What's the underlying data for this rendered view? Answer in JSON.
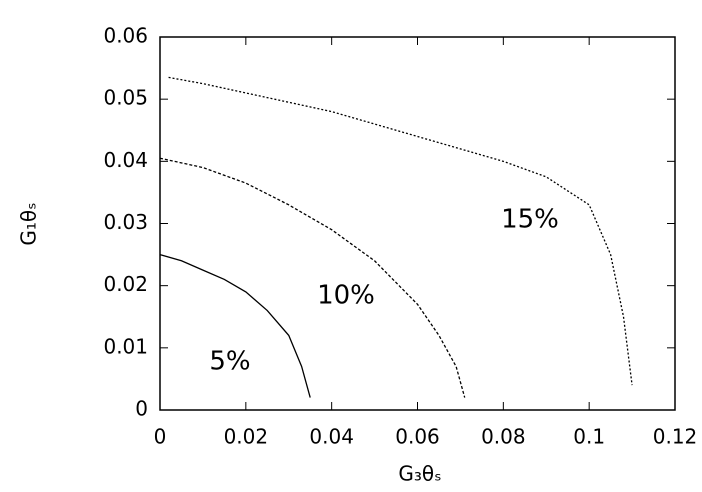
{
  "chart_data": {
    "type": "line",
    "x_label": "G₃θₛ",
    "y_label": "G₁θₛ",
    "xlim": [
      0,
      0.12
    ],
    "ylim": [
      0,
      0.06
    ],
    "xticks": [
      0,
      0.02,
      0.04,
      0.06,
      0.08,
      0.1,
      0.12
    ],
    "yticks": [
      0,
      0.01,
      0.02,
      0.03,
      0.04,
      0.05,
      0.06
    ],
    "series": [
      {
        "name": "5%",
        "color": "#000000",
        "x": [
          0,
          0.005,
          0.01,
          0.015,
          0.02,
          0.025,
          0.03,
          0.033,
          0.035
        ],
        "values": [
          0.025,
          0.024,
          0.0225,
          0.021,
          0.019,
          0.016,
          0.012,
          0.007,
          0.002
        ]
      },
      {
        "name": "10%",
        "color": "#000000",
        "x": [
          0,
          0.01,
          0.02,
          0.03,
          0.04,
          0.05,
          0.06,
          0.065,
          0.069,
          0.071
        ],
        "values": [
          0.0405,
          0.039,
          0.0365,
          0.033,
          0.029,
          0.024,
          0.017,
          0.012,
          0.007,
          0.002
        ]
      },
      {
        "name": "15%",
        "color": "#000000",
        "x": [
          0.002,
          0.01,
          0.02,
          0.03,
          0.04,
          0.05,
          0.06,
          0.07,
          0.08,
          0.09,
          0.1,
          0.105,
          0.108,
          0.11
        ],
        "values": [
          0.0535,
          0.0525,
          0.051,
          0.0495,
          0.048,
          0.046,
          0.044,
          0.042,
          0.04,
          0.0375,
          0.033,
          0.025,
          0.015,
          0.004
        ]
      }
    ]
  }
}
